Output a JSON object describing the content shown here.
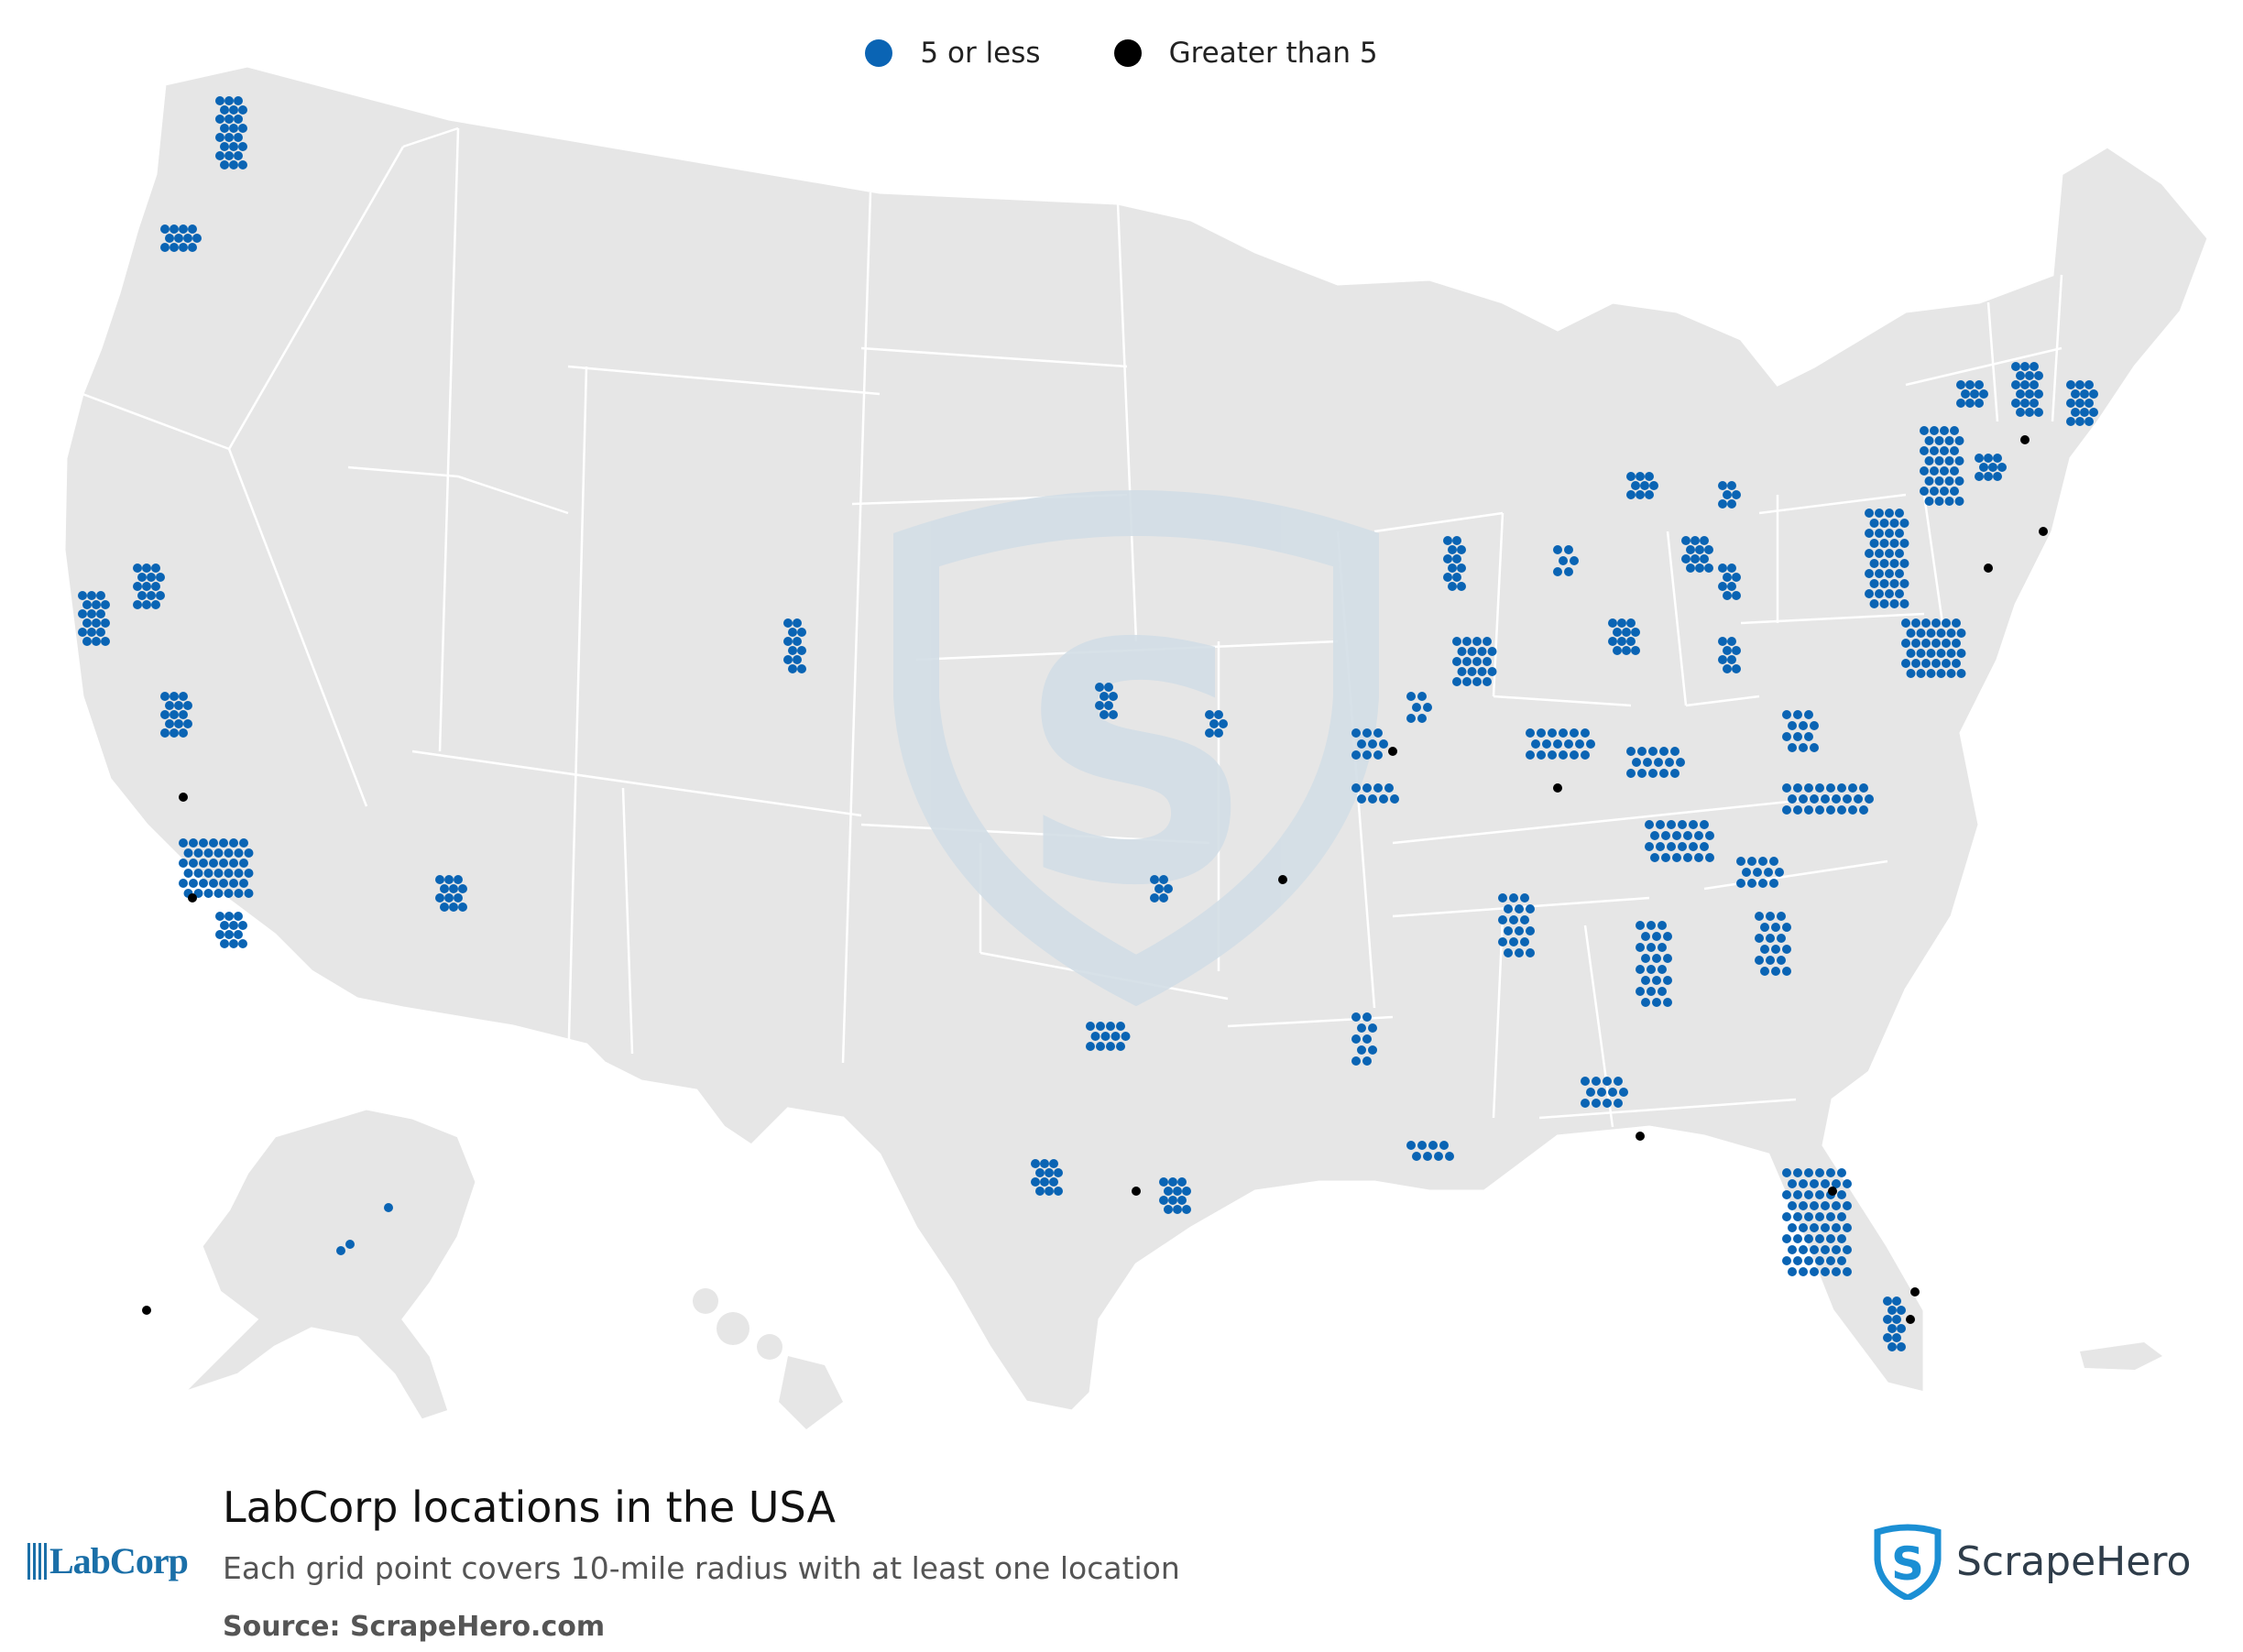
{
  "legend": {
    "small": {
      "label": "5 or less",
      "color": "#0a64b4"
    },
    "large": {
      "label": "Greater than 5",
      "color": "#000000"
    }
  },
  "footer": {
    "title": "LabCorp locations in the USA",
    "subtitle": "Each grid point covers 10-mile radius with at least one location",
    "source": "Source: ScrapeHero.com"
  },
  "logos": {
    "brand": "LabCorp",
    "publisher": "ScrapeHero"
  },
  "colors": {
    "land": "#e6e6e6",
    "border": "#ffffff",
    "watermark": "#d3dee6"
  }
}
